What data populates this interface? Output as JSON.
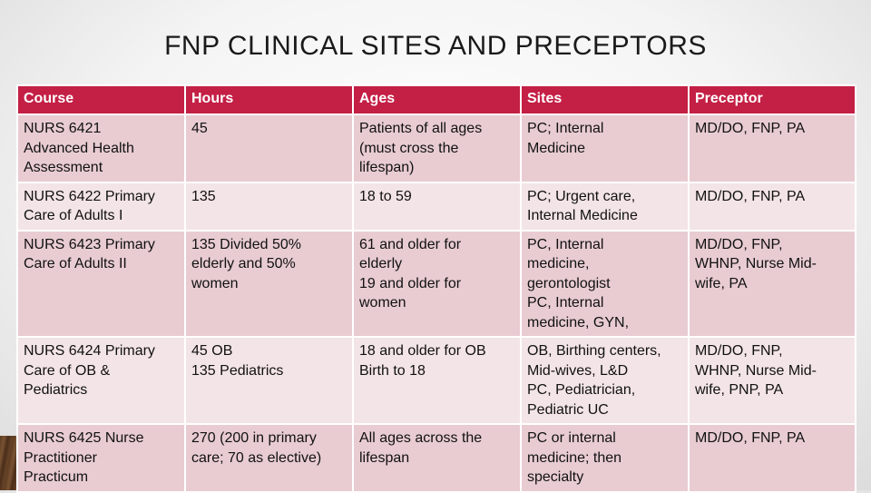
{
  "title": "FNP CLINICAL SITES AND PRECEPTORS",
  "columns": [
    "Course",
    "Hours",
    "Ages",
    "Sites",
    "Preceptor"
  ],
  "rows": [
    [
      "NURS 6421\nAdvanced Health\nAssessment",
      "45",
      "Patients of all ages\n(must cross the\nlifespan)",
      "PC; Internal\nMedicine",
      "MD/DO, FNP, PA"
    ],
    [
      "NURS 6422 Primary\nCare of Adults I",
      "135",
      "18 to 59",
      "PC; Urgent care,\nInternal Medicine",
      "MD/DO, FNP, PA"
    ],
    [
      "NURS 6423 Primary\nCare of Adults II",
      "135 Divided 50%\nelderly and 50%\nwomen",
      "61 and older for\nelderly\n19 and older for\nwomen",
      "PC, Internal\nmedicine,\ngerontologist\nPC, Internal\nmedicine, GYN,",
      "MD/DO, FNP,\nWHNP, Nurse Mid-\nwife, PA"
    ],
    [
      "NURS 6424 Primary\nCare of OB &\nPediatrics",
      "45 OB\n135 Pediatrics",
      "18 and older for OB\nBirth to 18",
      "OB, Birthing centers,\nMid-wives, L&D\nPC, Pediatrician,\nPediatric UC",
      "MD/DO, FNP,\nWHNP, Nurse Mid-\nwife, PNP, PA"
    ],
    [
      "NURS 6425 Nurse\nPractitioner\nPracticum",
      "270 (200 in primary\ncare; 70 as elective)",
      "All ages across the\nlifespan",
      "PC or internal\nmedicine; then\nspecialty",
      "MD/DO, FNP, PA"
    ]
  ]
}
